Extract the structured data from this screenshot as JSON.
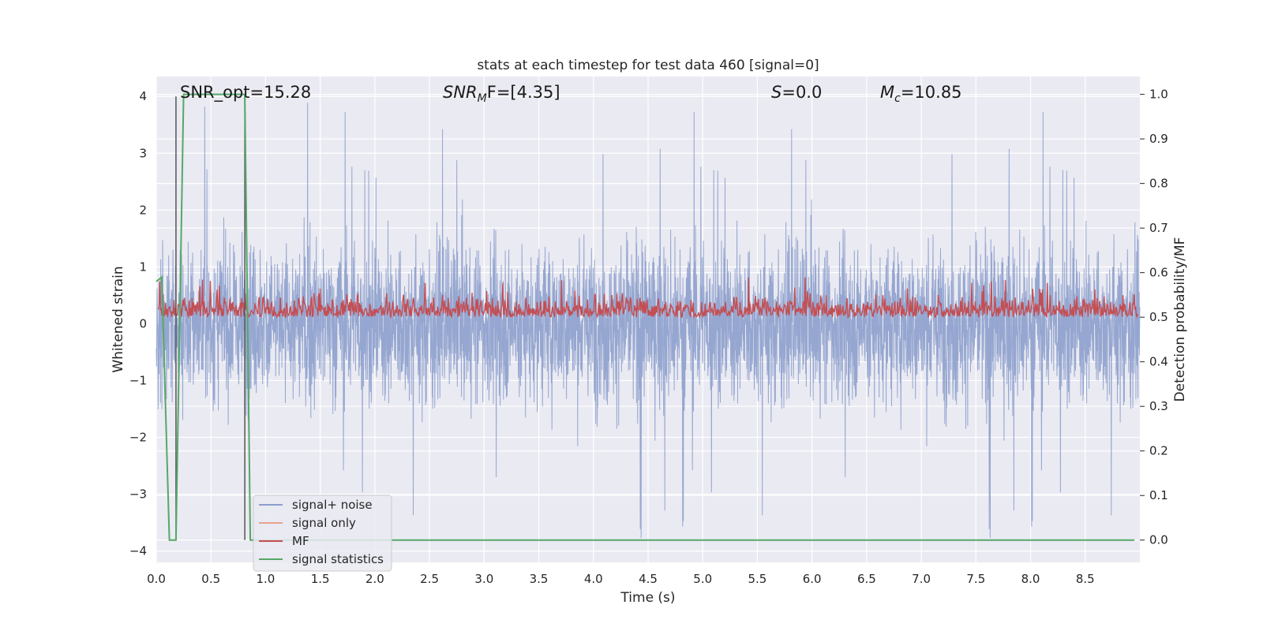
{
  "chart_data": {
    "type": "line",
    "title": "stats at each timestep for test data 460 [signal=0]",
    "xlabel": "Time (s)",
    "ylabel": "Whitened strain",
    "ylabel_right": "Detection probability/MF",
    "xlim": [
      0.0,
      9.0
    ],
    "ylim": [
      -4.2,
      4.35
    ],
    "ylim_right": [
      -0.05,
      1.04
    ],
    "xticks": [
      "0.0",
      "0.5",
      "1.0",
      "1.5",
      "2.0",
      "2.5",
      "3.0",
      "3.5",
      "4.0",
      "4.5",
      "5.0",
      "5.5",
      "6.0",
      "6.5",
      "7.0",
      "7.5",
      "8.0",
      "8.5"
    ],
    "yticks": [
      "4",
      "3",
      "2",
      "1",
      "0",
      "−1",
      "−2",
      "−3",
      "−4"
    ],
    "yticks_right": [
      "1.0",
      "0.9",
      "0.8",
      "0.7",
      "0.6",
      "0.5",
      "0.4",
      "0.3",
      "0.2",
      "0.1",
      "0.0"
    ],
    "grid": true,
    "legend_position": "lower-left",
    "annotations": {
      "snr_opt": "SNR_opt=15.28",
      "snr_mf_prefix": "SNR",
      "snr_mf_sub": "M",
      "snr_mf_suffix": "F=[4.35]",
      "s_prefix": "S",
      "s_suffix": "=0.0",
      "mc_prefix": "M",
      "mc_sub": "c",
      "mc_suffix": "=10.85"
    },
    "vertical_lines_x": [
      0.18,
      0.81
    ],
    "series": [
      {
        "name": "signal+ noise",
        "color": "#8c9fcc",
        "axis": "left",
        "envelope": {
          "typical_amplitude": 1.5,
          "peak_amplitude": 4.0,
          "min_value": -3.85
        }
      },
      {
        "name": "signal only",
        "color": "#e8a48c",
        "axis": "left",
        "values_constant": 0
      },
      {
        "name": "MF",
        "color": "#c44e52",
        "axis": "right",
        "value_range": [
          0.5,
          0.59
        ]
      },
      {
        "name": "signal statistics",
        "color": "#55a868",
        "axis": "right",
        "x": [
          0.0,
          0.05,
          0.12,
          0.18,
          0.25,
          0.81,
          0.86,
          8.95
        ],
        "y": [
          0.58,
          0.59,
          0.0,
          0.0,
          1.0,
          1.0,
          0.0,
          0.0
        ]
      }
    ]
  }
}
